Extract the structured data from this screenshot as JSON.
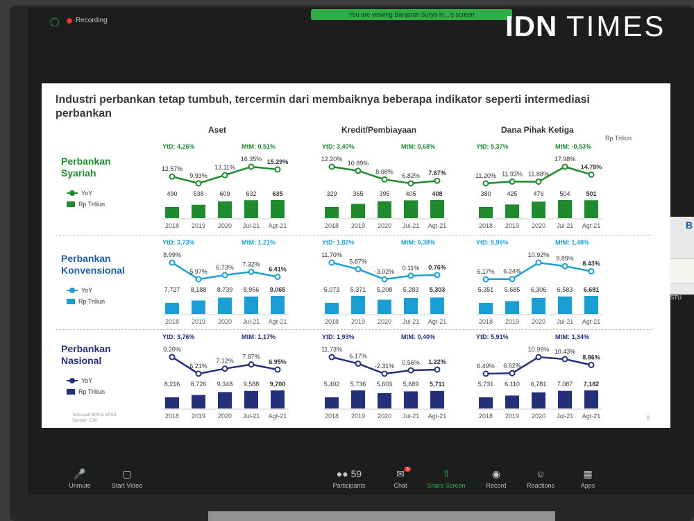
{
  "zoom": {
    "recording_label": "Recording",
    "viewing_banner": "You are viewing Banjaran Surya In...'s screen",
    "side_thumb_letter": "B",
    "side_label": "STU",
    "toolbar": [
      {
        "label": "Unmute",
        "icon": "mic-muted-icon"
      },
      {
        "label": "Start Video",
        "icon": "video-off-icon"
      },
      {
        "label": "Participants",
        "icon": "participants-icon",
        "count": "59"
      },
      {
        "label": "Chat",
        "icon": "chat-icon",
        "badge": "3"
      },
      {
        "label": "Share Screen",
        "icon": "share-screen-icon"
      },
      {
        "label": "Record",
        "icon": "record-icon"
      },
      {
        "label": "Reactions",
        "icon": "reactions-icon"
      },
      {
        "label": "Apps",
        "icon": "apps-icon"
      }
    ]
  },
  "brand": {
    "bold": "IDN",
    "light": "TIMES"
  },
  "slide": {
    "title": "Industri perbankan tetap tumbuh, tercermin dari membaiknya beberapa indikator seperti intermediasi perbankan",
    "unit_note": "Rp Triliun",
    "footnote_1": "Termasuk BPR & BPRS",
    "footnote_2": "Sumber: OJK",
    "page_number": "8",
    "columns": [
      "Aset",
      "Kredit/Pembiayaan",
      "Dana Pihak Ketiga"
    ],
    "legend_yoy": "YoY",
    "legend_rp": "Rp Triliun",
    "years": [
      "2018",
      "2019",
      "2020",
      "Jul-21",
      "Agt-21"
    ],
    "rows": [
      {
        "label_1": "Perbankan",
        "label_2": "Syariah",
        "color": "#1f8a2e",
        "label_color": "#1f8a2e",
        "panels": [
          {
            "ytd": "YtD:  4,26%",
            "mtm": "MtM:  0,51%",
            "yoy": [
              "12.57%",
              "9.93%",
              "13.11%",
              "16.35%",
              "15.29%"
            ],
            "yoy_num": [
              12.57,
              9.93,
              13.11,
              16.35,
              15.29
            ],
            "values": [
              "490",
              "538",
              "609",
              "632",
              "635"
            ],
            "values_num": [
              490,
              538,
              609,
              632,
              635
            ]
          },
          {
            "ytd": "YtD:  3,40%",
            "mtm": "MtM:  0,68%",
            "yoy": [
              "12.20%",
              "10.89%",
              "8.08%",
              "6.82%",
              "7.67%"
            ],
            "yoy_num": [
              12.2,
              10.89,
              8.08,
              6.82,
              7.67
            ],
            "values": [
              "329",
              "365",
              "395",
              "405",
              "408"
            ],
            "values_num": [
              329,
              365,
              395,
              405,
              408
            ]
          },
          {
            "ytd": "YtD:  5,37%",
            "mtm": "MtM:  -0,53%",
            "yoy": [
              "11.20%",
              "11.93%",
              "11.88%",
              "17.98%",
              "14.78%"
            ],
            "yoy_num": [
              11.2,
              11.93,
              11.88,
              17.98,
              14.78
            ],
            "values": [
              "380",
              "425",
              "476",
              "504",
              "501"
            ],
            "values_num": [
              380,
              425,
              476,
              504,
              501
            ]
          }
        ]
      },
      {
        "label_1": "Perbankan",
        "label_2": "Konvensional",
        "color": "#1a9ed4",
        "label_color": "#1f5fa8",
        "panels": [
          {
            "ytd": "YtD:  3,73%",
            "mtm": "MtM:  1,21%",
            "yoy": [
              "8.99%",
              "5.97%",
              "6.73%",
              "7.32%",
              "6.41%"
            ],
            "yoy_num": [
              8.99,
              5.97,
              6.73,
              7.32,
              6.41
            ],
            "values": [
              "7,727",
              "8,188",
              "8,739",
              "8,956",
              "9,065"
            ],
            "values_num": [
              7727,
              8188,
              8739,
              8956,
              9065
            ]
          },
          {
            "ytd": "YtD:  1,82%",
            "mtm": "MtM:  0,38%",
            "yoy": [
              "11.70%",
              "5.87%",
              "-3.02%",
              "0.11%",
              "0.76%"
            ],
            "yoy_num": [
              11.7,
              5.87,
              -3.02,
              0.11,
              0.76
            ],
            "values": [
              "5,073",
              "5,371",
              "5,208",
              "5,283",
              "5,303"
            ],
            "values_num": [
              5073,
              5371,
              5208,
              5283,
              5303
            ]
          },
          {
            "ytd": "YtD:  5,95%",
            "mtm": "MtM:  1,48%",
            "yoy": [
              "6.17%",
              "6.24%",
              "10.92%",
              "9.89%",
              "8.43%"
            ],
            "yoy_num": [
              6.17,
              6.24,
              10.92,
              9.89,
              8.43
            ],
            "values": [
              "5,351",
              "5,685",
              "6,306",
              "6,583",
              "6,681"
            ],
            "values_num": [
              5351,
              5685,
              6306,
              6583,
              6681
            ]
          }
        ]
      },
      {
        "label_1": "Perbankan",
        "label_2": "Nasional",
        "color": "#24307a",
        "label_color": "#24307a",
        "panels": [
          {
            "ytd": "YtD:  3,76%",
            "mtm": "MtM:  1,17%",
            "yoy": [
              "9.20%",
              "6.21%",
              "7.12%",
              "7.87%",
              "6.95%"
            ],
            "yoy_num": [
              9.2,
              6.21,
              7.12,
              7.87,
              6.95
            ],
            "values": [
              "8,216",
              "8,726",
              "9,348",
              "9,588",
              "9,700"
            ],
            "values_num": [
              8216,
              8726,
              9348,
              9588,
              9700
            ]
          },
          {
            "ytd": "YtD:  1,93%",
            "mtm": "MtM:  0,40%",
            "yoy": [
              "11.73%",
              "6.17%",
              "-2.31%",
              "0.56%",
              "1.22%"
            ],
            "yoy_num": [
              11.73,
              6.17,
              -2.31,
              0.56,
              1.22
            ],
            "values": [
              "5,402",
              "5,736",
              "5,603",
              "5,689",
              "5,711"
            ],
            "values_num": [
              5402,
              5736,
              5603,
              5689,
              5711
            ]
          },
          {
            "ytd": "YtD:  5,91%",
            "mtm": "MtM:  1,34%",
            "yoy": [
              "6.49%",
              "6.62%",
              "10.99%",
              "10.43%",
              "8.86%"
            ],
            "yoy_num": [
              6.49,
              6.62,
              10.99,
              10.43,
              8.86
            ],
            "values": [
              "5,731",
              "6,110",
              "6,781",
              "7,087",
              "7,182"
            ],
            "values_num": [
              5731,
              6110,
              6781,
              7087,
              7182
            ]
          }
        ]
      }
    ]
  }
}
